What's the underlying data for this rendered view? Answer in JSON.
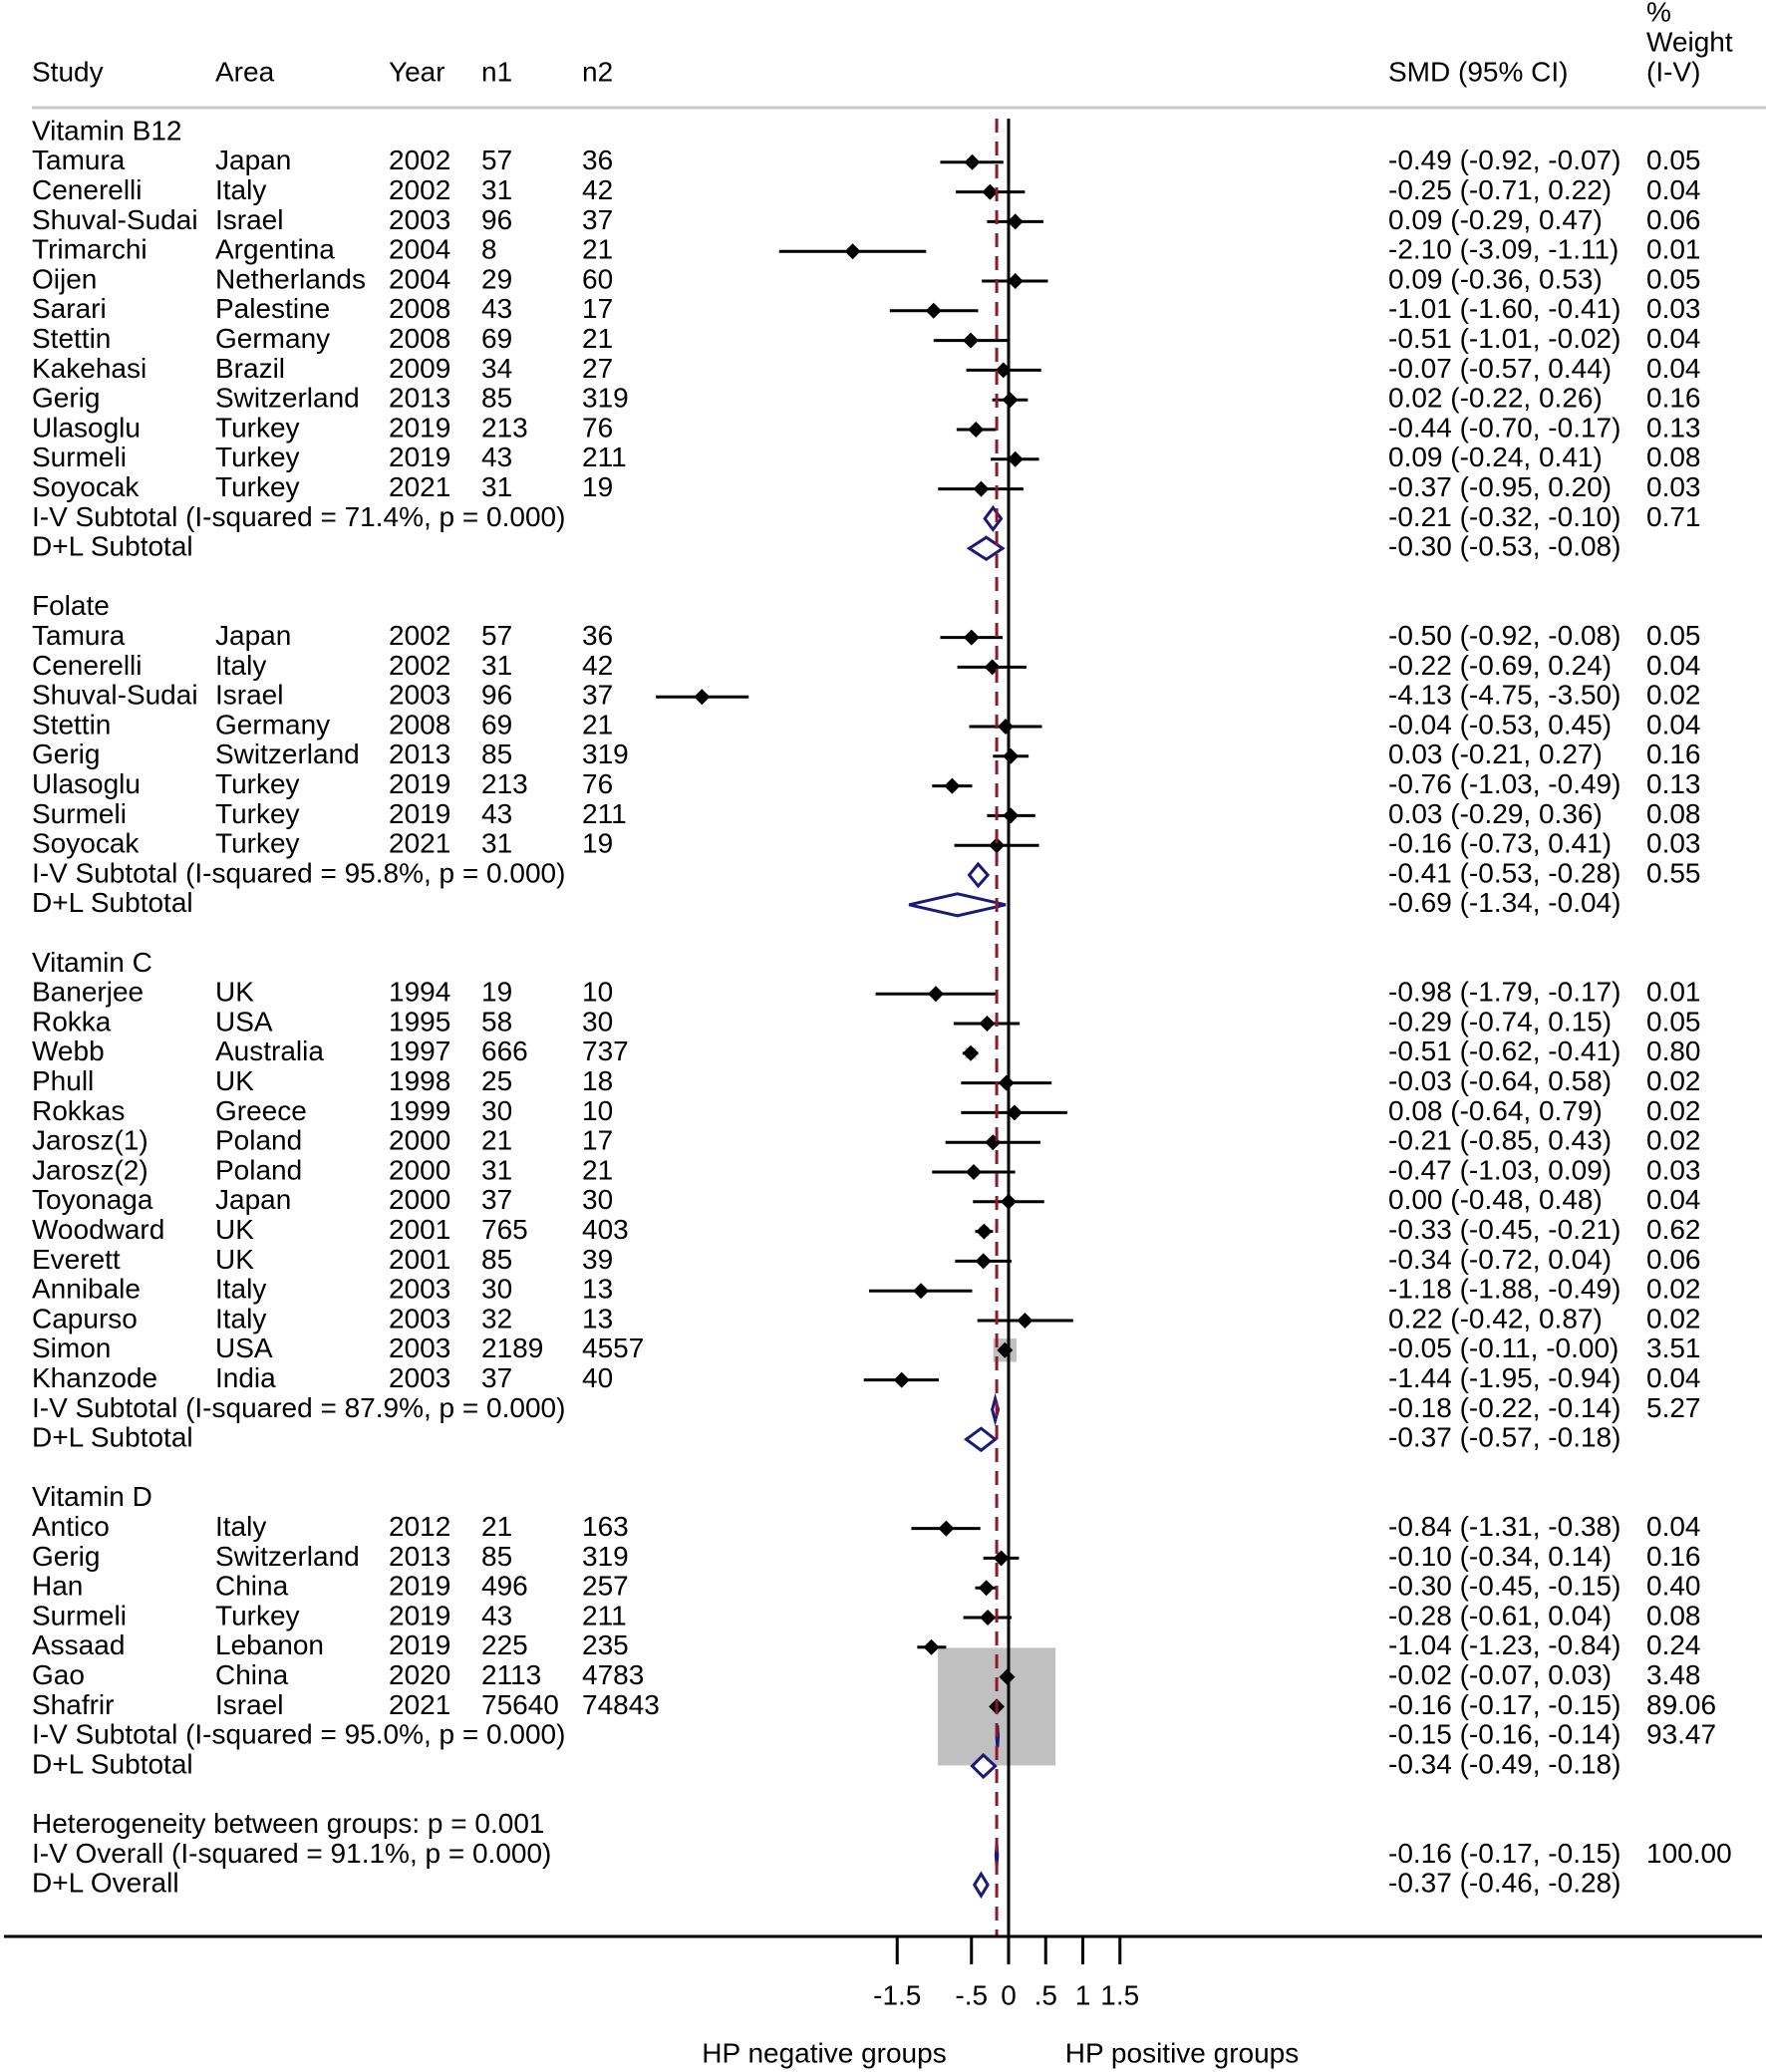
{
  "chart_data": {
    "type": "forest",
    "headers": {
      "study": "Study",
      "area": "Area",
      "year": "Year",
      "n1": "n1",
      "n2": "n2",
      "smd": "SMD (95% CI)",
      "weight_lines": [
        "%",
        "Weight",
        "(I-V)"
      ]
    },
    "groups": [
      {
        "name": "Vitamin B12",
        "studies": [
          {
            "study": "Tamura",
            "area": "Japan",
            "year": "2002",
            "n1": "57",
            "n2": "36",
            "smd": -0.49,
            "lo": -0.92,
            "hi": -0.07,
            "ci": "-0.49 (-0.92, -0.07)",
            "weight": "0.05"
          },
          {
            "study": "Cenerelli",
            "area": "Italy",
            "year": "2002",
            "n1": "31",
            "n2": "42",
            "smd": -0.25,
            "lo": -0.71,
            "hi": 0.22,
            "ci": "-0.25 (-0.71, 0.22)",
            "weight": "0.04"
          },
          {
            "study": "Shuval-Sudai",
            "area": "Israel",
            "year": "2003",
            "n1": "96",
            "n2": "37",
            "smd": 0.09,
            "lo": -0.29,
            "hi": 0.47,
            "ci": "0.09 (-0.29, 0.47)",
            "weight": "0.06"
          },
          {
            "study": "Trimarchi",
            "area": "Argentina",
            "year": "2004",
            "n1": "8",
            "n2": "21",
            "smd": -2.1,
            "lo": -3.09,
            "hi": -1.11,
            "ci": "-2.10 (-3.09, -1.11)",
            "weight": "0.01"
          },
          {
            "study": "Oijen",
            "area": "Netherlands",
            "year": "2004",
            "n1": "29",
            "n2": "60",
            "smd": 0.09,
            "lo": -0.36,
            "hi": 0.53,
            "ci": "0.09 (-0.36, 0.53)",
            "weight": "0.05"
          },
          {
            "study": "Sarari",
            "area": "Palestine",
            "year": "2008",
            "n1": "43",
            "n2": "17",
            "smd": -1.01,
            "lo": -1.6,
            "hi": -0.41,
            "ci": "-1.01 (-1.60, -0.41)",
            "weight": "0.03"
          },
          {
            "study": "Stettin",
            "area": "Germany",
            "year": "2008",
            "n1": "69",
            "n2": "21",
            "smd": -0.51,
            "lo": -1.01,
            "hi": -0.02,
            "ci": "-0.51 (-1.01, -0.02)",
            "weight": "0.04"
          },
          {
            "study": "Kakehasi",
            "area": "Brazil",
            "year": "2009",
            "n1": "34",
            "n2": "27",
            "smd": -0.07,
            "lo": -0.57,
            "hi": 0.44,
            "ci": "-0.07 (-0.57, 0.44)",
            "weight": "0.04"
          },
          {
            "study": "Gerig",
            "area": "Switzerland",
            "year": "2013",
            "n1": "85",
            "n2": "319",
            "smd": 0.02,
            "lo": -0.22,
            "hi": 0.26,
            "ci": "0.02 (-0.22, 0.26)",
            "weight": "0.16"
          },
          {
            "study": "Ulasoglu",
            "area": "Turkey",
            "year": "2019",
            "n1": "213",
            "n2": "76",
            "smd": -0.44,
            "lo": -0.7,
            "hi": -0.17,
            "ci": "-0.44 (-0.70, -0.17)",
            "weight": "0.13"
          },
          {
            "study": "Surmeli",
            "area": "Turkey",
            "year": "2019",
            "n1": "43",
            "n2": "211",
            "smd": 0.09,
            "lo": -0.24,
            "hi": 0.41,
            "ci": "0.09 (-0.24, 0.41)",
            "weight": "0.08"
          },
          {
            "study": "Soyocak",
            "area": "Turkey",
            "year": "2021",
            "n1": "31",
            "n2": "19",
            "smd": -0.37,
            "lo": -0.95,
            "hi": 0.2,
            "ci": "-0.37 (-0.95, 0.20)",
            "weight": "0.03"
          }
        ],
        "iv": {
          "label": "I-V Subtotal",
          "stat": "(I-squared = 71.4%, p = 0.000)",
          "smd": -0.21,
          "lo": -0.32,
          "hi": -0.1,
          "ci": "-0.21 (-0.32, -0.10)",
          "weight": "0.71"
        },
        "dl": {
          "label": "D+L Subtotal",
          "smd": -0.3,
          "lo": -0.53,
          "hi": -0.08,
          "ci": "-0.30 (-0.53, -0.08)"
        }
      },
      {
        "name": "Folate",
        "studies": [
          {
            "study": "Tamura",
            "area": "Japan",
            "year": "2002",
            "n1": "57",
            "n2": "36",
            "smd": -0.5,
            "lo": -0.92,
            "hi": -0.08,
            "ci": "-0.50 (-0.92, -0.08)",
            "weight": "0.05"
          },
          {
            "study": "Cenerelli",
            "area": "Italy",
            "year": "2002",
            "n1": "31",
            "n2": "42",
            "smd": -0.22,
            "lo": -0.69,
            "hi": 0.24,
            "ci": "-0.22 (-0.69, 0.24)",
            "weight": "0.04"
          },
          {
            "study": "Shuval-Sudai",
            "area": "Israel",
            "year": "2003",
            "n1": "96",
            "n2": "37",
            "smd": -4.13,
            "lo": -4.75,
            "hi": -3.5,
            "ci": "-4.13 (-4.75, -3.50)",
            "weight": "0.02"
          },
          {
            "study": "Stettin",
            "area": "Germany",
            "year": "2008",
            "n1": "69",
            "n2": "21",
            "smd": -0.04,
            "lo": -0.53,
            "hi": 0.45,
            "ci": "-0.04 (-0.53, 0.45)",
            "weight": "0.04"
          },
          {
            "study": "Gerig",
            "area": "Switzerland",
            "year": "2013",
            "n1": "85",
            "n2": "319",
            "smd": 0.03,
            "lo": -0.21,
            "hi": 0.27,
            "ci": "0.03 (-0.21, 0.27)",
            "weight": "0.16"
          },
          {
            "study": "Ulasoglu",
            "area": "Turkey",
            "year": "2019",
            "n1": "213",
            "n2": "76",
            "smd": -0.76,
            "lo": -1.03,
            "hi": -0.49,
            "ci": "-0.76 (-1.03, -0.49)",
            "weight": "0.13"
          },
          {
            "study": "Surmeli",
            "area": "Turkey",
            "year": "2019",
            "n1": "43",
            "n2": "211",
            "smd": 0.03,
            "lo": -0.29,
            "hi": 0.36,
            "ci": "0.03 (-0.29, 0.36)",
            "weight": "0.08"
          },
          {
            "study": "Soyocak",
            "area": "Turkey",
            "year": "2021",
            "n1": "31",
            "n2": "19",
            "smd": -0.16,
            "lo": -0.73,
            "hi": 0.41,
            "ci": "-0.16 (-0.73, 0.41)",
            "weight": "0.03"
          }
        ],
        "iv": {
          "label": "I-V Subtotal",
          "stat": "(I-squared = 95.8%, p = 0.000)",
          "smd": -0.41,
          "lo": -0.53,
          "hi": -0.28,
          "ci": "-0.41 (-0.53, -0.28)",
          "weight": "0.55"
        },
        "dl": {
          "label": "D+L Subtotal",
          "smd": -0.69,
          "lo": -1.34,
          "hi": -0.04,
          "ci": "-0.69 (-1.34, -0.04)"
        }
      },
      {
        "name": "Vitamin C",
        "studies": [
          {
            "study": "Banerjee",
            "area": "UK",
            "year": "1994",
            "n1": "19",
            "n2": "10",
            "smd": -0.98,
            "lo": -1.79,
            "hi": -0.17,
            "ci": "-0.98 (-1.79, -0.17)",
            "weight": "0.01"
          },
          {
            "study": "Rokka",
            "area": "USA",
            "year": "1995",
            "n1": "58",
            "n2": "30",
            "smd": -0.29,
            "lo": -0.74,
            "hi": 0.15,
            "ci": "-0.29 (-0.74, 0.15)",
            "weight": "0.05"
          },
          {
            "study": "Webb",
            "area": "Australia",
            "year": "1997",
            "n1": "666",
            "n2": "737",
            "smd": -0.51,
            "lo": -0.62,
            "hi": -0.41,
            "ci": "-0.51 (-0.62, -0.41)",
            "weight": "0.80"
          },
          {
            "study": "Phull",
            "area": "UK",
            "year": "1998",
            "n1": "25",
            "n2": "18",
            "smd": -0.03,
            "lo": -0.64,
            "hi": 0.58,
            "ci": "-0.03 (-0.64, 0.58)",
            "weight": "0.02"
          },
          {
            "study": "Rokkas",
            "area": "Greece",
            "year": "1999",
            "n1": "30",
            "n2": "10",
            "smd": 0.08,
            "lo": -0.64,
            "hi": 0.79,
            "ci": "0.08 (-0.64, 0.79)",
            "weight": "0.02"
          },
          {
            "study": "Jarosz(1)",
            "area": "Poland",
            "year": "2000",
            "n1": "21",
            "n2": "17",
            "smd": -0.21,
            "lo": -0.85,
            "hi": 0.43,
            "ci": "-0.21 (-0.85, 0.43)",
            "weight": "0.02"
          },
          {
            "study": "Jarosz(2)",
            "area": "Poland",
            "year": "2000",
            "n1": "31",
            "n2": "21",
            "smd": -0.47,
            "lo": -1.03,
            "hi": 0.09,
            "ci": "-0.47 (-1.03, 0.09)",
            "weight": "0.03"
          },
          {
            "study": "Toyonaga",
            "area": "Japan",
            "year": "2000",
            "n1": "37",
            "n2": "30",
            "smd": 0.0,
            "lo": -0.48,
            "hi": 0.48,
            "ci": "0.00 (-0.48, 0.48)",
            "weight": "0.04"
          },
          {
            "study": "Woodward",
            "area": "UK",
            "year": "2001",
            "n1": "765",
            "n2": "403",
            "smd": -0.33,
            "lo": -0.45,
            "hi": -0.21,
            "ci": "-0.33 (-0.45, -0.21)",
            "weight": "0.62"
          },
          {
            "study": "Everett",
            "area": "UK",
            "year": "2001",
            "n1": "85",
            "n2": "39",
            "smd": -0.34,
            "lo": -0.72,
            "hi": 0.04,
            "ci": "-0.34 (-0.72, 0.04)",
            "weight": "0.06"
          },
          {
            "study": "Annibale",
            "area": "Italy",
            "year": "2003",
            "n1": "30",
            "n2": "13",
            "smd": -1.18,
            "lo": -1.88,
            "hi": -0.49,
            "ci": "-1.18 (-1.88, -0.49)",
            "weight": "0.02"
          },
          {
            "study": "Capurso",
            "area": "Italy",
            "year": "2003",
            "n1": "32",
            "n2": "13",
            "smd": 0.22,
            "lo": -0.42,
            "hi": 0.87,
            "ci": "0.22 (-0.42, 0.87)",
            "weight": "0.02"
          },
          {
            "study": "Simon",
            "area": "USA",
            "year": "2003",
            "n1": "2189",
            "n2": "4557",
            "smd": -0.05,
            "lo": -0.11,
            "hi": -0.0,
            "ci": "-0.05 (-0.11, -0.00)",
            "weight": "3.51"
          },
          {
            "study": "Khanzode",
            "area": "India",
            "year": "2003",
            "n1": "37",
            "n2": "40",
            "smd": -1.44,
            "lo": -1.95,
            "hi": -0.94,
            "ci": "-1.44 (-1.95, -0.94)",
            "weight": "0.04"
          }
        ],
        "iv": {
          "label": "I-V Subtotal",
          "stat": "(I-squared = 87.9%, p = 0.000)",
          "smd": -0.18,
          "lo": -0.22,
          "hi": -0.14,
          "ci": "-0.18 (-0.22, -0.14)",
          "weight": "5.27"
        },
        "dl": {
          "label": "D+L Subtotal",
          "smd": -0.37,
          "lo": -0.57,
          "hi": -0.18,
          "ci": "-0.37 (-0.57, -0.18)"
        }
      },
      {
        "name": "Vitamin D",
        "studies": [
          {
            "study": "Antico",
            "area": "Italy",
            "year": "2012",
            "n1": "21",
            "n2": "163",
            "smd": -0.84,
            "lo": -1.31,
            "hi": -0.38,
            "ci": "-0.84 (-1.31, -0.38)",
            "weight": "0.04"
          },
          {
            "study": "Gerig",
            "area": "Switzerland",
            "year": "2013",
            "n1": "85",
            "n2": "319",
            "smd": -0.1,
            "lo": -0.34,
            "hi": 0.14,
            "ci": "-0.10 (-0.34, 0.14)",
            "weight": "0.16"
          },
          {
            "study": "Han",
            "area": "China",
            "year": "2019",
            "n1": "496",
            "n2": "257",
            "smd": -0.3,
            "lo": -0.45,
            "hi": -0.15,
            "ci": "-0.30 (-0.45, -0.15)",
            "weight": "0.40"
          },
          {
            "study": "Surmeli",
            "area": "Turkey",
            "year": "2019",
            "n1": "43",
            "n2": "211",
            "smd": -0.28,
            "lo": -0.61,
            "hi": 0.04,
            "ci": "-0.28 (-0.61, 0.04)",
            "weight": "0.08"
          },
          {
            "study": "Assaad",
            "area": "Lebanon",
            "year": "2019",
            "n1": "225",
            "n2": "235",
            "smd": -1.04,
            "lo": -1.23,
            "hi": -0.84,
            "ci": "-1.04 (-1.23, -0.84)",
            "weight": "0.24"
          },
          {
            "study": "Gao",
            "area": "China",
            "year": "2020",
            "n1": "2113",
            "n2": "4783",
            "smd": -0.02,
            "lo": -0.07,
            "hi": 0.03,
            "ci": "-0.02 (-0.07, 0.03)",
            "weight": "3.48"
          },
          {
            "study": "Shafrir",
            "area": "Israel",
            "year": "2021",
            "n1": "75640",
            "n2": "74843",
            "smd": -0.16,
            "lo": -0.17,
            "hi": -0.15,
            "ci": "-0.16 (-0.17, -0.15)",
            "weight": "89.06"
          }
        ],
        "iv": {
          "label": "I-V Subtotal",
          "stat": "(I-squared = 95.0%, p = 0.000)",
          "smd": -0.15,
          "lo": -0.16,
          "hi": -0.14,
          "ci": "-0.15 (-0.16, -0.14)",
          "weight": "93.47"
        },
        "dl": {
          "label": "D+L Subtotal",
          "smd": -0.34,
          "lo": -0.49,
          "hi": -0.18,
          "ci": "-0.34 (-0.49, -0.18)"
        }
      }
    ],
    "heterogeneity": "Heterogeneity between groups: p = 0.001",
    "overall_iv": {
      "label": "I-V Overall",
      "stat": "(I-squared = 91.1%, p = 0.000)",
      "smd": -0.16,
      "lo": -0.17,
      "hi": -0.15,
      "ci": "-0.16 (-0.17, -0.15)",
      "weight": "100.00"
    },
    "overall_dl": {
      "label": "D+L Overall",
      "smd": -0.37,
      "lo": -0.46,
      "hi": -0.28,
      "ci": "-0.37 (-0.46, -0.28)"
    },
    "x_ticks": [
      {
        "value": -1.5,
        "label": "-1.5"
      },
      {
        "value": -0.5,
        "label": "-.5"
      },
      {
        "value": 0,
        "label": "0"
      },
      {
        "value": 0.5,
        "label": ".5"
      },
      {
        "value": 1,
        "label": "1"
      },
      {
        "value": 1.5,
        "label": "1.5"
      }
    ],
    "null_line": 0,
    "pooled_line": -0.16,
    "xlabel_left": "HP negative groups",
    "xlabel_right": "HP positive groups",
    "colors": {
      "diamond": "#1a1a7a",
      "pooled_line": "#8b1a2a",
      "weight_box": "#c0c0c0",
      "text": "#000000"
    }
  }
}
